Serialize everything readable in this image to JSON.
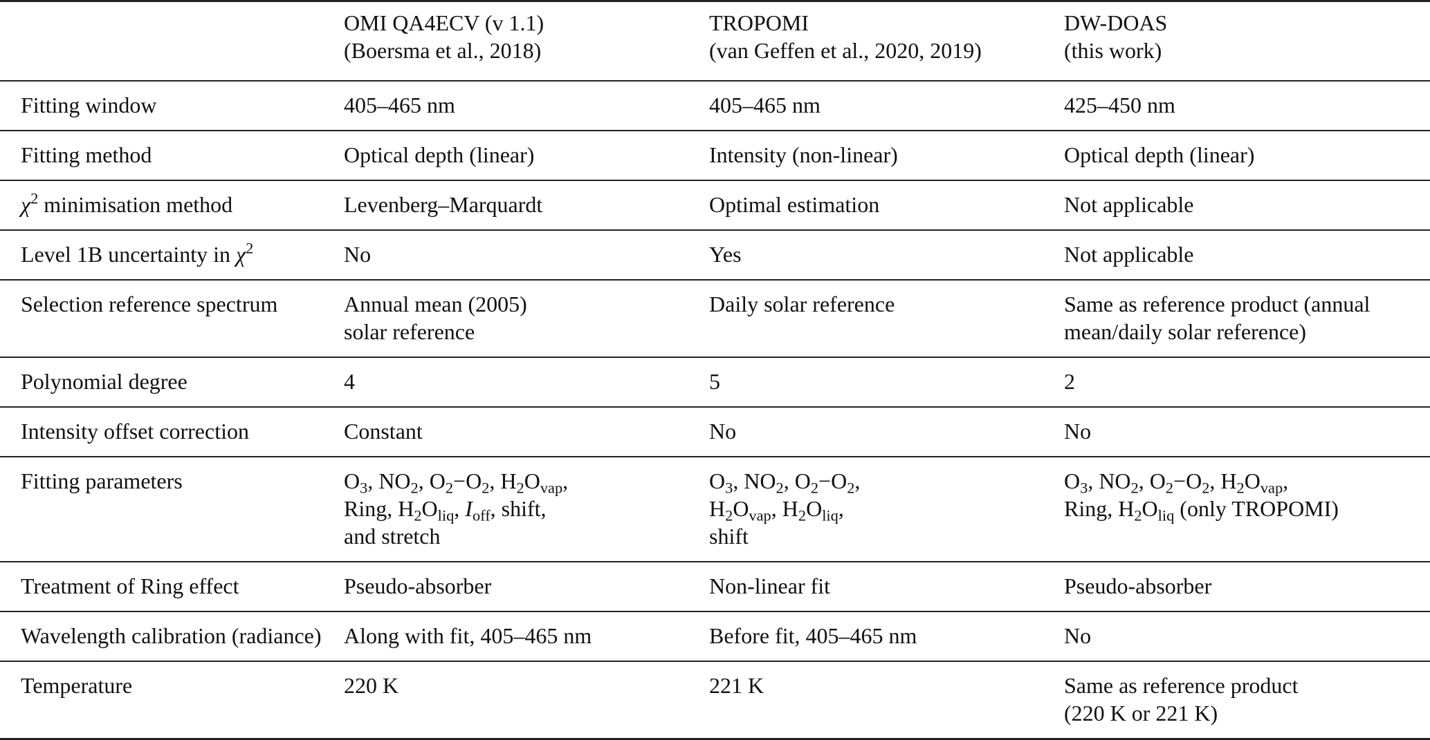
{
  "table": {
    "header": [
      [
        [
          [
            ""
          ]
        ]
      ],
      [
        [
          [
            "OMI QA4ECV (v 1.1)"
          ]
        ],
        [
          [
            "(Boersma et al., 2018)"
          ]
        ]
      ],
      [
        [
          [
            "TROPOMI"
          ]
        ],
        [
          [
            "(van Geffen et al., 2020, 2019)"
          ]
        ]
      ],
      [
        [
          [
            "DW-DOAS"
          ]
        ],
        [
          [
            "(this work)"
          ]
        ]
      ]
    ],
    "rows": [
      [
        [
          [
            [
              "Fitting window"
            ]
          ]
        ],
        [
          [
            [
              "405–465 nm"
            ]
          ]
        ],
        [
          [
            [
              "405–465 nm"
            ]
          ]
        ],
        [
          [
            [
              "425–450 nm"
            ]
          ]
        ]
      ],
      [
        [
          [
            [
              "Fitting method"
            ]
          ]
        ],
        [
          [
            [
              "Optical depth (linear)"
            ]
          ]
        ],
        [
          [
            [
              "Intensity (non-linear)"
            ]
          ]
        ],
        [
          [
            [
              "Optical depth (linear)"
            ]
          ]
        ]
      ],
      [
        [
          [
            [
              "χ",
              "i"
            ],
            [
              "2",
              "sup"
            ],
            [
              " minimisation method"
            ]
          ]
        ],
        [
          [
            [
              "Levenberg–Marquardt"
            ]
          ]
        ],
        [
          [
            [
              "Optimal estimation"
            ]
          ]
        ],
        [
          [
            [
              "Not applicable"
            ]
          ]
        ]
      ],
      [
        [
          [
            [
              "Level 1B uncertainty in "
            ],
            [
              "χ",
              "i"
            ],
            [
              "2",
              "sup"
            ]
          ]
        ],
        [
          [
            [
              "No"
            ]
          ]
        ],
        [
          [
            [
              "Yes"
            ]
          ]
        ],
        [
          [
            [
              "Not applicable"
            ]
          ]
        ]
      ],
      [
        [
          [
            [
              "Selection reference spectrum"
            ]
          ]
        ],
        [
          [
            [
              "Annual mean (2005)"
            ]
          ],
          [
            [
              "solar reference"
            ]
          ]
        ],
        [
          [
            [
              "Daily solar reference"
            ]
          ]
        ],
        [
          [
            [
              "Same as reference product (annual"
            ]
          ],
          [
            [
              "mean/daily solar reference)"
            ]
          ]
        ]
      ],
      [
        [
          [
            [
              "Polynomial degree"
            ]
          ]
        ],
        [
          [
            [
              "4"
            ]
          ]
        ],
        [
          [
            [
              "5"
            ]
          ]
        ],
        [
          [
            [
              "2"
            ]
          ]
        ]
      ],
      [
        [
          [
            [
              "Intensity offset correction"
            ]
          ]
        ],
        [
          [
            [
              "Constant"
            ]
          ]
        ],
        [
          [
            [
              "No"
            ]
          ]
        ],
        [
          [
            [
              "No"
            ]
          ]
        ]
      ],
      [
        [
          [
            [
              "Fitting parameters"
            ]
          ]
        ],
        [
          [
            [
              "O"
            ],
            [
              "3",
              "sub"
            ],
            [
              ", NO"
            ],
            [
              "2",
              "sub"
            ],
            [
              ", O"
            ],
            [
              "2",
              "sub"
            ],
            [
              "−O"
            ],
            [
              "2",
              "sub"
            ],
            [
              ", H"
            ],
            [
              "2",
              "sub"
            ],
            [
              "O"
            ],
            [
              "vap",
              "sub"
            ],
            [
              ","
            ]
          ],
          [
            [
              "Ring, H"
            ],
            [
              "2",
              "sub"
            ],
            [
              "O"
            ],
            [
              "liq",
              "sub"
            ],
            [
              ", "
            ],
            [
              "I",
              "i"
            ],
            [
              "off",
              "sub"
            ],
            [
              ", shift,"
            ]
          ],
          [
            [
              "and stretch"
            ]
          ]
        ],
        [
          [
            [
              "O"
            ],
            [
              "3",
              "sub"
            ],
            [
              ", NO"
            ],
            [
              "2",
              "sub"
            ],
            [
              ", O"
            ],
            [
              "2",
              "sub"
            ],
            [
              "−O"
            ],
            [
              "2",
              "sub"
            ],
            [
              ","
            ]
          ],
          [
            [
              "H"
            ],
            [
              "2",
              "sub"
            ],
            [
              "O"
            ],
            [
              "vap",
              "sub"
            ],
            [
              ", H"
            ],
            [
              "2",
              "sub"
            ],
            [
              "O"
            ],
            [
              "liq",
              "sub"
            ],
            [
              ","
            ]
          ],
          [
            [
              "shift"
            ]
          ]
        ],
        [
          [
            [
              "O"
            ],
            [
              "3",
              "sub"
            ],
            [
              ", NO"
            ],
            [
              "2",
              "sub"
            ],
            [
              ", O"
            ],
            [
              "2",
              "sub"
            ],
            [
              "−O"
            ],
            [
              "2",
              "sub"
            ],
            [
              ", H"
            ],
            [
              "2",
              "sub"
            ],
            [
              "O"
            ],
            [
              "vap",
              "sub"
            ],
            [
              ","
            ]
          ],
          [
            [
              "Ring, H"
            ],
            [
              "2",
              "sub"
            ],
            [
              "O"
            ],
            [
              "liq",
              "sub"
            ],
            [
              " (only TROPOMI)"
            ]
          ]
        ]
      ],
      [
        [
          [
            [
              "Treatment of Ring effect"
            ]
          ]
        ],
        [
          [
            [
              "Pseudo-absorber"
            ]
          ]
        ],
        [
          [
            [
              "Non-linear fit"
            ]
          ]
        ],
        [
          [
            [
              "Pseudo-absorber"
            ]
          ]
        ]
      ],
      [
        [
          [
            [
              "Wavelength calibration (radiance)"
            ]
          ]
        ],
        [
          [
            [
              "Along with fit, 405–465 nm"
            ]
          ]
        ],
        [
          [
            [
              "Before fit, 405–465 nm"
            ]
          ]
        ],
        [
          [
            [
              "No"
            ]
          ]
        ]
      ],
      [
        [
          [
            [
              "Temperature"
            ]
          ]
        ],
        [
          [
            [
              "220 K"
            ]
          ]
        ],
        [
          [
            [
              "221 K"
            ]
          ]
        ],
        [
          [
            [
              "Same as reference product"
            ]
          ],
          [
            [
              "(220 K or 221 K)"
            ]
          ]
        ]
      ]
    ]
  }
}
